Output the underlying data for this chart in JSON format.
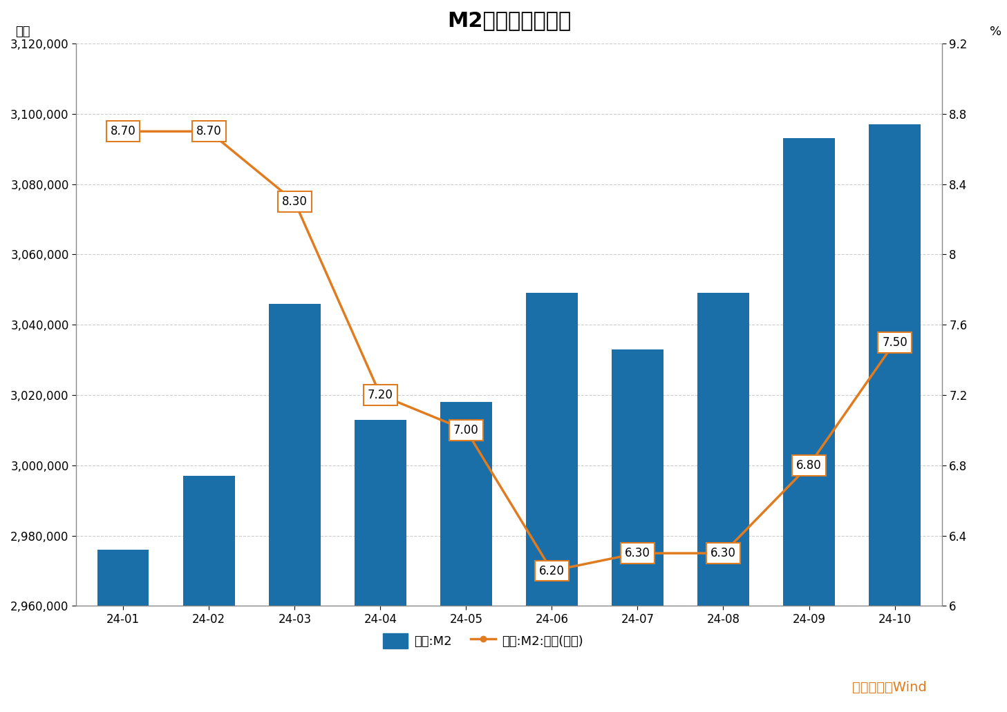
{
  "title": "M2数据及变化情况",
  "categories": [
    "24-01",
    "24-02",
    "24-03",
    "24-04",
    "24-05",
    "24-06",
    "24-07",
    "24-08",
    "24-09",
    "24-10"
  ],
  "m2_values": [
    2976000,
    2997000,
    3046000,
    3013000,
    3018000,
    3049000,
    3033000,
    3049000,
    3093000,
    3097000
  ],
  "yoy_values": [
    8.7,
    8.7,
    8.3,
    7.2,
    7.0,
    6.2,
    6.3,
    6.3,
    6.8,
    7.5
  ],
  "yoy_labels": [
    "8.70",
    "8.70",
    "8.30",
    "7.20",
    "7.00",
    "6.20",
    "6.30",
    "6.30",
    "6.80",
    "7.50"
  ],
  "bar_color": "#1B6FA8",
  "line_color": "#E07B20",
  "left_ylabel": "亿元",
  "right_ylabel": "%",
  "ylim_left": [
    2960000,
    3120000
  ],
  "ylim_right": [
    6.0,
    9.2
  ],
  "yticks_left": [
    2960000,
    2980000,
    3000000,
    3020000,
    3040000,
    3060000,
    3080000,
    3100000,
    3120000
  ],
  "yticks_right": [
    6.0,
    6.4,
    6.8,
    7.2,
    7.6,
    8.0,
    8.4,
    8.8,
    9.2
  ],
  "legend_bar_label": "中国:M2",
  "legend_line_label": "中国:M2:同比(右轴)",
  "source_text": "数据来源：Wind",
  "source_color": "#E07B20",
  "background_color": "#FFFFFF",
  "grid_color": "#CCCCCC",
  "title_fontsize": 22,
  "axis_label_fontsize": 13,
  "tick_fontsize": 12,
  "annotation_fontsize": 12,
  "source_fontsize": 14,
  "legend_fontsize": 13,
  "bar_width": 0.6
}
